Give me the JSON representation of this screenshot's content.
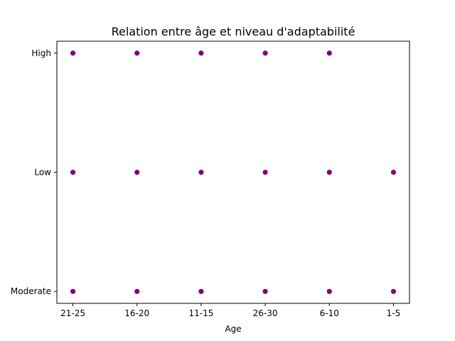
{
  "chart_data": {
    "type": "scatter",
    "title": "Relation entre âge et niveau d'adaptabilité",
    "xlabel": "Age",
    "ylabel": "",
    "x_categories": [
      "21-25",
      "16-20",
      "11-15",
      "26-30",
      "6-10",
      "1-5"
    ],
    "y_categories": [
      "Moderate",
      "Low",
      "High"
    ],
    "marker_color": "#800080",
    "grid": false,
    "points": [
      {
        "x": "21-25",
        "y": "High"
      },
      {
        "x": "16-20",
        "y": "High"
      },
      {
        "x": "11-15",
        "y": "High"
      },
      {
        "x": "26-30",
        "y": "High"
      },
      {
        "x": "6-10",
        "y": "High"
      },
      {
        "x": "21-25",
        "y": "Low"
      },
      {
        "x": "16-20",
        "y": "Low"
      },
      {
        "x": "11-15",
        "y": "Low"
      },
      {
        "x": "26-30",
        "y": "Low"
      },
      {
        "x": "6-10",
        "y": "Low"
      },
      {
        "x": "1-5",
        "y": "Low"
      },
      {
        "x": "21-25",
        "y": "Moderate"
      },
      {
        "x": "16-20",
        "y": "Moderate"
      },
      {
        "x": "11-15",
        "y": "Moderate"
      },
      {
        "x": "26-30",
        "y": "Moderate"
      },
      {
        "x": "6-10",
        "y": "Moderate"
      },
      {
        "x": "1-5",
        "y": "Moderate"
      }
    ]
  }
}
